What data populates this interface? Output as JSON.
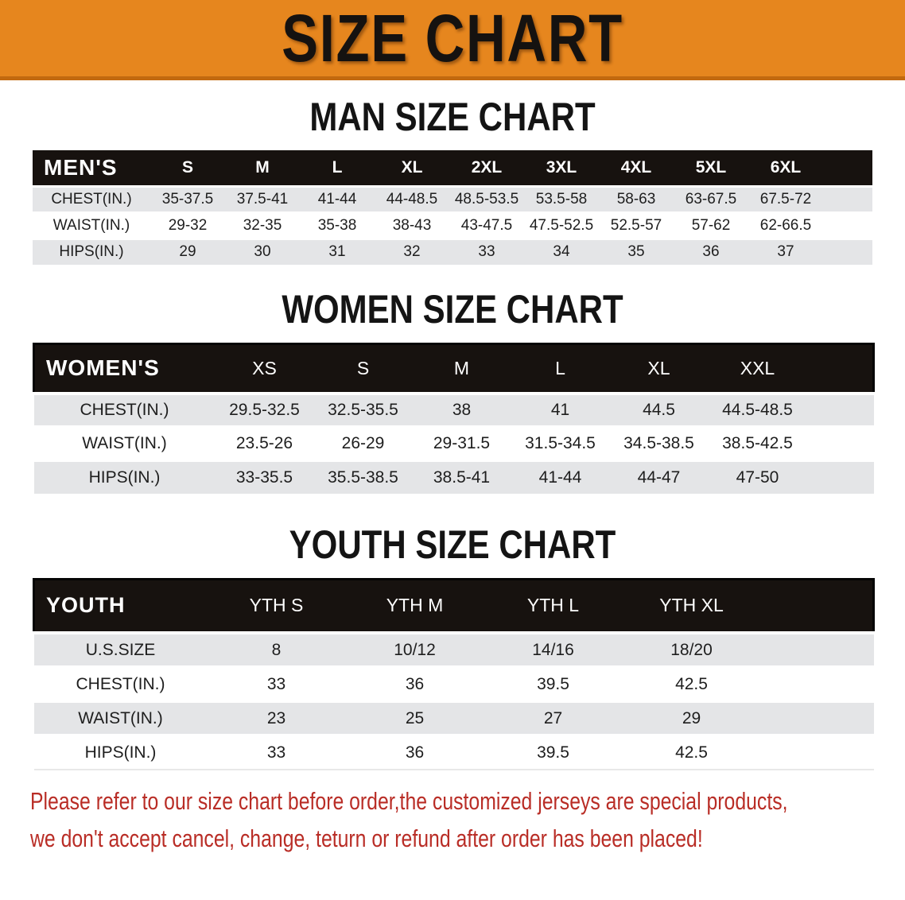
{
  "banner": {
    "title": "SIZE CHART",
    "bg_color": "#E6861E"
  },
  "sections": [
    {
      "heading": "MAN SIZE CHART",
      "table": {
        "corner": "MEN'S",
        "columns": [
          "S",
          "M",
          "L",
          "XL",
          "2XL",
          "3XL",
          "4XL",
          "5XL",
          "6XL"
        ],
        "rows": [
          {
            "label": "CHEST(IN.)",
            "values": [
              "35-37.5",
              "37.5-41",
              "41-44",
              "44-48.5",
              "48.5-53.5",
              "53.5-58",
              "58-63",
              "63-67.5",
              "67.5-72"
            ]
          },
          {
            "label": "WAIST(IN.)",
            "values": [
              "29-32",
              "32-35",
              "35-38",
              "38-43",
              "43-47.5",
              "47.5-52.5",
              "52.5-57",
              "57-62",
              "62-66.5"
            ]
          },
          {
            "label": "HIPS(IN.)",
            "values": [
              "29",
              "30",
              "31",
              "32",
              "33",
              "34",
              "35",
              "36",
              "37"
            ]
          }
        ]
      }
    },
    {
      "heading": "WOMEN SIZE CHART",
      "table": {
        "corner": "WOMEN'S",
        "columns": [
          "XS",
          "S",
          "M",
          "L",
          "XL",
          "XXL"
        ],
        "rows": [
          {
            "label": "CHEST(IN.)",
            "values": [
              "29.5-32.5",
              "32.5-35.5",
              "38",
              "41",
              "44.5",
              "44.5-48.5"
            ]
          },
          {
            "label": "WAIST(IN.)",
            "values": [
              "23.5-26",
              "26-29",
              "29-31.5",
              "31.5-34.5",
              "34.5-38.5",
              "38.5-42.5"
            ]
          },
          {
            "label": "HIPS(IN.)",
            "values": [
              "33-35.5",
              "35.5-38.5",
              "38.5-41",
              "41-44",
              "44-47",
              "47-50"
            ]
          }
        ]
      }
    },
    {
      "heading": "YOUTH SIZE CHART",
      "table": {
        "corner": "YOUTH",
        "columns": [
          "YTH S",
          "YTH M",
          "YTH L",
          "YTH XL"
        ],
        "rows": [
          {
            "label": "U.S.SIZE",
            "values": [
              "8",
              "10/12",
              "14/16",
              "18/20"
            ]
          },
          {
            "label": "CHEST(IN.)",
            "values": [
              "33",
              "36",
              "39.5",
              "42.5"
            ]
          },
          {
            "label": "WAIST(IN.)",
            "values": [
              "23",
              "25",
              "27",
              "29"
            ]
          },
          {
            "label": "HIPS(IN.)",
            "values": [
              "33",
              "36",
              "39.5",
              "42.5"
            ]
          }
        ]
      }
    }
  ],
  "footer": {
    "lines": [
      "Please refer to our size chart before order,the customized jerseys are special products,",
      "we don't accept cancel, change, teturn or refund after order has been placed!"
    ],
    "color": "#B92D26"
  }
}
